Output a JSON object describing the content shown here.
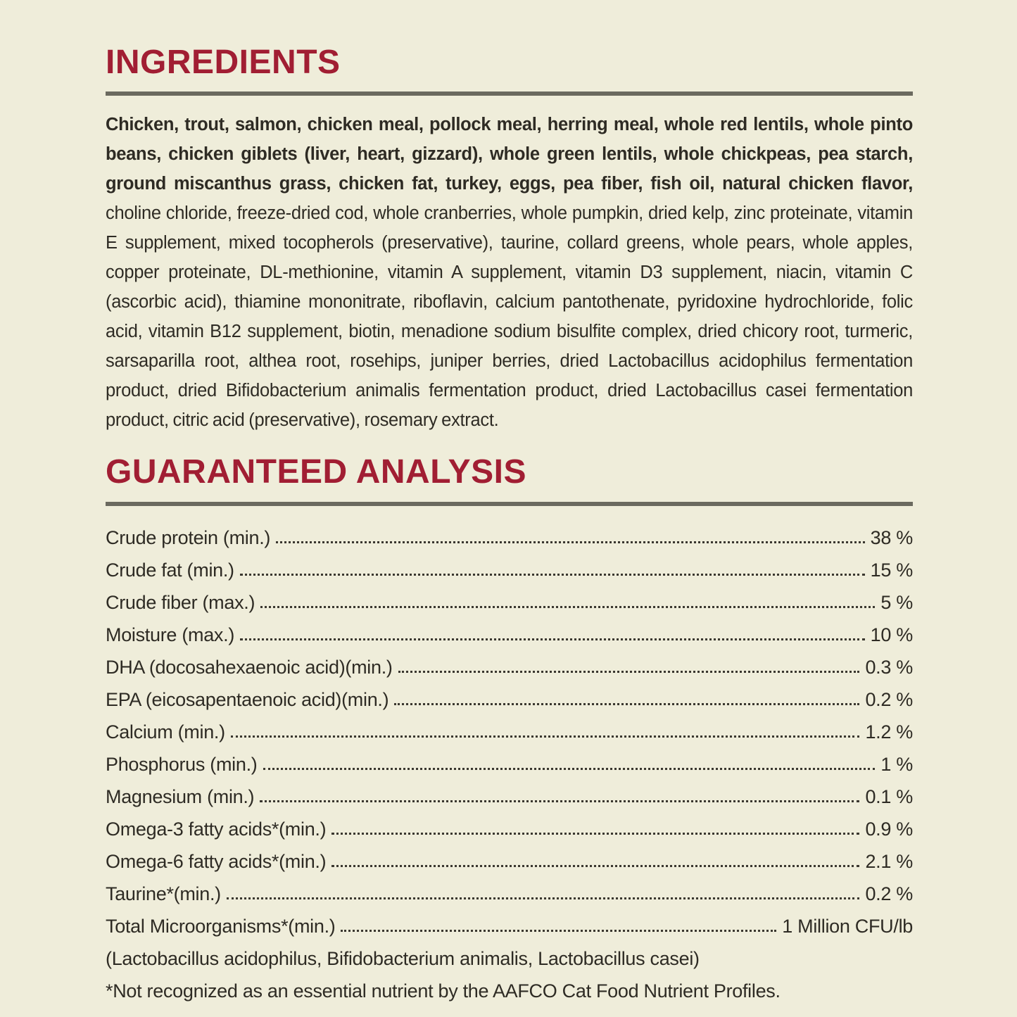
{
  "page": {
    "background_color": "#EFEDDA",
    "accent_color": "#A11E33",
    "text_color": "#2E2B24",
    "rule_color": "#6B6A5F"
  },
  "ingredients": {
    "title": "INGREDIENTS",
    "text_bold": "Chicken, trout, salmon, chicken meal, pollock meal, herring meal, whole red lentils, whole pinto beans, chicken giblets (liver, heart, gizzard), whole green lentils, whole chickpeas, pea starch, ground miscanthus grass, chicken fat, turkey, eggs, pea fiber, fish oil, natural chicken flavor,",
    "text_regular": " choline chloride, freeze-dried cod, whole cranberries, whole pumpkin, dried kelp, zinc proteinate, vitamin E supplement, mixed tocopherols (preservative), taurine, collard greens, whole pears, whole apples, copper proteinate, DL-methionine, vitamin A supplement, vitamin D3 supplement, niacin, vitamin C (ascorbic acid), thiamine mononitrate, riboflavin, calcium pantothenate, pyridoxine hydrochloride, folic acid, vitamin B12 supplement, biotin, menadione sodium bisulfite complex, dried chicory root, turmeric, sarsaparilla root, althea root, rosehips, juniper berries, dried Lactobacillus acidophilus fermentation product, dried Bifidobacterium animalis fermentation product, dried Lactobacillus casei fermentation product, citric acid (preservative), rosemary extract."
  },
  "guaranteed_analysis": {
    "title": "GUARANTEED ANALYSIS",
    "rows": [
      {
        "label": "Crude protein (min.)",
        "value": "38 %"
      },
      {
        "label": "Crude fat (min.)",
        "value": "15 %"
      },
      {
        "label": "Crude fiber (max.)",
        "value": "5 %"
      },
      {
        "label": "Moisture (max.)",
        "value": "10 %"
      },
      {
        "label": "DHA (docosahexaenoic acid)(min.)",
        "value": "0.3 %"
      },
      {
        "label": "EPA (eicosapentaenoic acid)(min.)",
        "value": "0.2 %"
      },
      {
        "label": "Calcium (min.)",
        "value": "1.2 %"
      },
      {
        "label": "Phosphorus (min.)",
        "value": "1 %"
      },
      {
        "label": "Magnesium (min.)",
        "value": "0.1 %"
      },
      {
        "label": "Omega-3 fatty acids*(min.)",
        "value": "0.9 %"
      },
      {
        "label": "Omega-6 fatty acids*(min.)",
        "value": "2.1 %"
      },
      {
        "label": "Taurine*(min.)",
        "value": "0.2 %"
      },
      {
        "label": "Total Microorganisms*(min.)",
        "value": "1 Million CFU/lb"
      }
    ],
    "microorganisms_detail": "(Lactobacillus acidophilus, Bifidobacterium animalis, Lactobacillus casei)",
    "footnote": "*Not recognized as an essential nutrient by the AAFCO Cat Food Nutrient Profiles."
  }
}
